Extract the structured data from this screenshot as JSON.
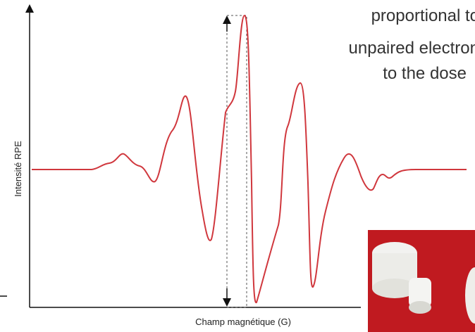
{
  "figure": {
    "y_axis_label": "Intensité RPE",
    "x_axis_label": "Champ magnétique (G)"
  },
  "caption": {
    "lines": [
      "proportional to",
      "unpaired electron",
      "to the dose"
    ]
  }
}
